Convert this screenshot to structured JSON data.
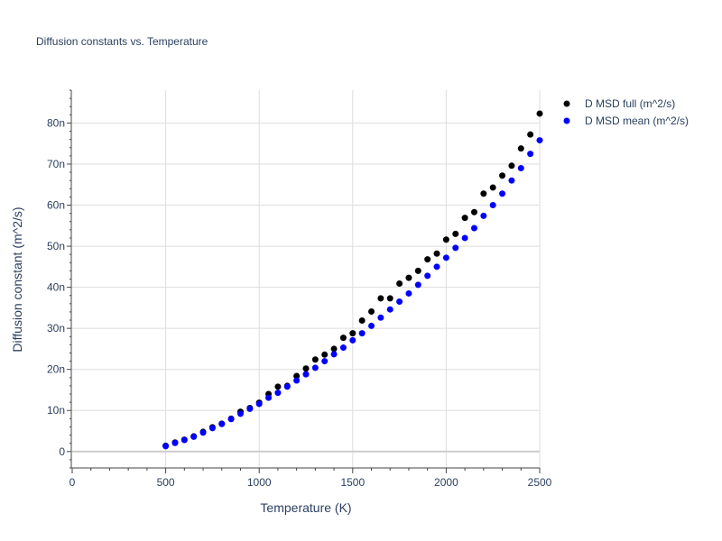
{
  "chart_data": {
    "type": "scatter",
    "title": "Diffusion constants vs. Temperature",
    "xlabel": "Temperature (K)",
    "ylabel": "Diffusion constant (m^2/s)",
    "xlim": [
      0,
      2500
    ],
    "ylim": [
      -4,
      88
    ],
    "x_ticks": [
      0,
      500,
      1000,
      1500,
      2000,
      2500
    ],
    "x_tick_labels": [
      "0",
      "500",
      "1000",
      "1500",
      "2000",
      "2500"
    ],
    "y_ticks": [
      0,
      10,
      20,
      30,
      40,
      50,
      60,
      70,
      80
    ],
    "y_tick_labels": [
      "0",
      "10n",
      "20n",
      "30n",
      "40n",
      "50n",
      "60n",
      "70n",
      "80n"
    ],
    "grid": true,
    "legend_position": "top-right",
    "series": [
      {
        "name": "D MSD full (m^2/s)",
        "color": "#000000",
        "x": [
          500,
          550,
          600,
          650,
          700,
          750,
          800,
          850,
          900,
          950,
          1000,
          1050,
          1100,
          1150,
          1200,
          1250,
          1300,
          1350,
          1400,
          1450,
          1500,
          1550,
          1600,
          1650,
          1700,
          1750,
          1800,
          1850,
          1900,
          1950,
          2000,
          2050,
          2100,
          2150,
          2200,
          2250,
          2300,
          2350,
          2400,
          2450,
          2500
        ],
        "y": [
          1.4,
          2.2,
          2.9,
          3.7,
          4.8,
          5.9,
          6.8,
          8.0,
          9.7,
          10.6,
          11.9,
          14.0,
          15.8,
          16.0,
          18.4,
          20.2,
          22.4,
          23.6,
          25.0,
          27.7,
          28.8,
          31.9,
          34.1,
          37.3,
          37.3,
          40.9,
          42.3,
          44.0,
          46.8,
          48.2,
          51.6,
          53.0,
          56.9,
          58.3,
          62.8,
          64.3,
          67.2,
          69.6,
          73.8,
          77.2,
          82.3
        ]
      },
      {
        "name": "D MSD mean (m^2/s)",
        "color": "#0000ff",
        "x": [
          500,
          550,
          600,
          650,
          700,
          750,
          800,
          850,
          900,
          950,
          1000,
          1050,
          1100,
          1150,
          1200,
          1250,
          1300,
          1350,
          1400,
          1450,
          1500,
          1550,
          1600,
          1650,
          1700,
          1750,
          1800,
          1850,
          1900,
          1950,
          2000,
          2050,
          2100,
          2150,
          2200,
          2250,
          2300,
          2350,
          2400,
          2450,
          2500
        ],
        "y": [
          1.3,
          2.1,
          2.8,
          3.6,
          4.6,
          5.7,
          6.7,
          7.9,
          9.2,
          10.4,
          11.6,
          13.1,
          14.3,
          15.8,
          17.3,
          18.8,
          20.4,
          22.0,
          23.7,
          25.3,
          27.1,
          28.8,
          30.6,
          32.6,
          34.6,
          36.5,
          38.5,
          40.6,
          42.8,
          45.0,
          47.2,
          49.6,
          52.0,
          54.4,
          57.4,
          60.0,
          62.8,
          66.0,
          69.0,
          72.5,
          75.8
        ]
      }
    ]
  }
}
